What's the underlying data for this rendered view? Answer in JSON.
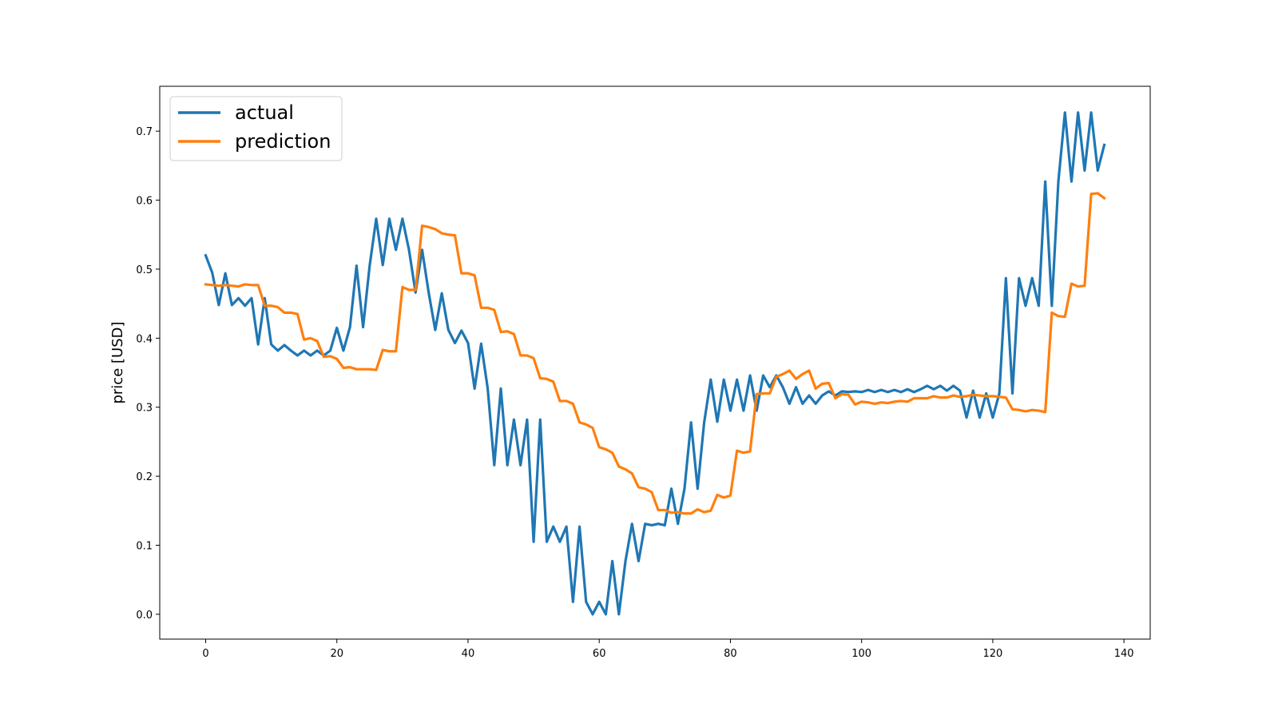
{
  "chart_data": {
    "type": "line",
    "title": "",
    "xlabel": "",
    "ylabel": "price [USD]",
    "xlim": [
      -7,
      144
    ],
    "ylim": [
      -0.036,
      0.765
    ],
    "xticks": [
      0,
      20,
      40,
      60,
      80,
      100,
      120,
      140
    ],
    "yticks": [
      0.0,
      0.1,
      0.2,
      0.3,
      0.4,
      0.5,
      0.6,
      0.7
    ],
    "grid": false,
    "legend_position": "top-left",
    "series": [
      {
        "name": "actual",
        "color": "#1f77b4",
        "values": [
          0.52,
          0.495,
          0.448,
          0.494,
          0.448,
          0.458,
          0.447,
          0.458,
          0.391,
          0.458,
          0.391,
          0.382,
          0.39,
          0.382,
          0.375,
          0.382,
          0.375,
          0.382,
          0.375,
          0.382,
          0.415,
          0.382,
          0.416,
          0.505,
          0.416,
          0.505,
          0.573,
          0.506,
          0.573,
          0.528,
          0.573,
          0.528,
          0.466,
          0.528,
          0.466,
          0.412,
          0.465,
          0.412,
          0.393,
          0.411,
          0.393,
          0.327,
          0.392,
          0.327,
          0.216,
          0.327,
          0.216,
          0.282,
          0.216,
          0.282,
          0.105,
          0.282,
          0.105,
          0.127,
          0.105,
          0.127,
          0.018,
          0.127,
          0.018,
          0.0,
          0.018,
          0.0,
          0.077,
          0.0,
          0.077,
          0.131,
          0.077,
          0.131,
          0.129,
          0.131,
          0.129,
          0.182,
          0.131,
          0.182,
          0.278,
          0.182,
          0.278,
          0.34,
          0.279,
          0.34,
          0.295,
          0.34,
          0.295,
          0.346,
          0.295,
          0.346,
          0.329,
          0.346,
          0.329,
          0.305,
          0.329,
          0.305,
          0.317,
          0.305,
          0.317,
          0.323,
          0.317,
          0.323,
          0.322,
          0.323,
          0.322,
          0.325,
          0.322,
          0.325,
          0.322,
          0.325,
          0.322,
          0.326,
          0.322,
          0.326,
          0.331,
          0.326,
          0.331,
          0.324,
          0.331,
          0.324,
          0.285,
          0.324,
          0.285,
          0.32,
          0.285,
          0.32,
          0.487,
          0.32,
          0.487,
          0.447,
          0.487,
          0.447,
          0.627,
          0.447,
          0.627,
          0.727,
          0.627,
          0.727,
          0.643,
          0.727,
          0.643,
          0.68
        ]
      },
      {
        "name": "prediction",
        "color": "#ff7f0e",
        "values": [
          0.478,
          0.477,
          0.476,
          0.477,
          0.476,
          0.475,
          0.478,
          0.477,
          0.477,
          0.447,
          0.447,
          0.445,
          0.437,
          0.437,
          0.435,
          0.398,
          0.4,
          0.396,
          0.373,
          0.374,
          0.37,
          0.357,
          0.358,
          0.355,
          0.355,
          0.355,
          0.354,
          0.383,
          0.381,
          0.381,
          0.474,
          0.47,
          0.47,
          0.563,
          0.561,
          0.558,
          0.552,
          0.55,
          0.549,
          0.494,
          0.494,
          0.491,
          0.444,
          0.444,
          0.441,
          0.409,
          0.41,
          0.406,
          0.375,
          0.375,
          0.371,
          0.342,
          0.341,
          0.337,
          0.309,
          0.309,
          0.305,
          0.278,
          0.275,
          0.27,
          0.242,
          0.239,
          0.234,
          0.214,
          0.21,
          0.204,
          0.184,
          0.182,
          0.177,
          0.151,
          0.151,
          0.147,
          0.148,
          0.146,
          0.146,
          0.152,
          0.148,
          0.15,
          0.173,
          0.169,
          0.172,
          0.237,
          0.234,
          0.236,
          0.319,
          0.32,
          0.32,
          0.344,
          0.348,
          0.353,
          0.341,
          0.348,
          0.353,
          0.327,
          0.334,
          0.335,
          0.313,
          0.319,
          0.318,
          0.304,
          0.308,
          0.307,
          0.305,
          0.307,
          0.306,
          0.308,
          0.309,
          0.308,
          0.313,
          0.313,
          0.313,
          0.316,
          0.314,
          0.314,
          0.317,
          0.315,
          0.316,
          0.318,
          0.317,
          0.316,
          0.316,
          0.315,
          0.314,
          0.297,
          0.296,
          0.294,
          0.296,
          0.295,
          0.293,
          0.437,
          0.432,
          0.431,
          0.479,
          0.475,
          0.476,
          0.609,
          0.61,
          0.603
        ]
      }
    ]
  }
}
